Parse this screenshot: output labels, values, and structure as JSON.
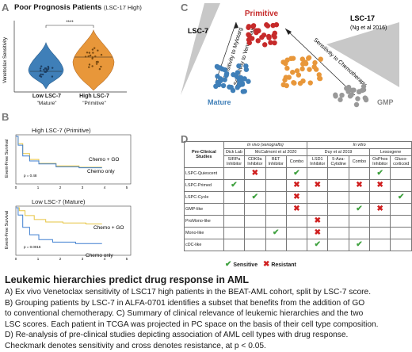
{
  "panelA": {
    "label": "A",
    "title": "Poor Prognosis Patients",
    "title_sub": "(LSC-17 High)",
    "ylabel": "Venetoclax Sensitivity",
    "significance": "****",
    "groups": [
      {
        "name": "Low LSC-7",
        "sub": "\"Mature\"",
        "color": "#3f7fb8"
      },
      {
        "name": "High LSC-7",
        "sub": "\"Primitive\"",
        "color": "#e8973a"
      }
    ]
  },
  "panelB": {
    "label": "B",
    "ylabel": "Event-Free Survival",
    "xticks": [
      "0",
      "1",
      "2",
      "3",
      "4",
      "5"
    ],
    "plots": [
      {
        "title": "High LSC-7 (Primitive)",
        "pval": "p = 0.48",
        "curve_gold": "Chemo + GO",
        "curve_blue": "Chemo only"
      },
      {
        "title": "Low LSC-7 (Mature)",
        "pval": "p = 0.0016",
        "curve_gold": "Chemo + GO",
        "curve_blue": "Chemo only"
      }
    ],
    "colors": {
      "gold": "#e6c440",
      "blue": "#3f7fd0"
    }
  },
  "panelC": {
    "label": "C",
    "primitive": "Primitive",
    "lsc7": "LSC-7",
    "lsc17": "LSC-17",
    "lsc17_ref": "(Ng et al 2016)",
    "myl": "Sensitivity to Mylotarg",
    "ven": "Sensitivity to Venetoclax",
    "chemo": "Sensitivity to Chemotherapy",
    "mature": "Mature",
    "gmp": "GMP",
    "colors": {
      "primitive": "#c62a2a",
      "mature": "#3f7fb8",
      "orange": "#e8973a",
      "gmp": "#999999"
    }
  },
  "panelD": {
    "label": "D",
    "col_studies": "Pre-Clinical Studies",
    "in_vivo": "In vivo (xenografts)",
    "in_vitro": "In vitro",
    "studies": [
      "Dick Lab",
      "McCalmont et al 2020",
      "Duy et al 2019",
      "Lesosgene"
    ],
    "drugs": [
      "SIRPa Inhibitor",
      "CDK9a Inhibitor",
      "BET Inhibitor",
      "Combo",
      "LSD1 Inhibitor",
      "5-Aza-Cytidine",
      "Combo",
      "OxPhos Inhibitor",
      "Gluco-corticoid"
    ],
    "rows": [
      {
        "name": "LSPC-Quiescent",
        "marks": [
          "",
          "x",
          "",
          "v",
          "",
          "",
          "",
          "v",
          ""
        ]
      },
      {
        "name": "LSPC-Primed",
        "marks": [
          "v",
          "",
          "",
          "x",
          "x",
          "",
          "x",
          "x",
          ""
        ]
      },
      {
        "name": "LSPC-Cycle",
        "marks": [
          "",
          "v",
          "",
          "x",
          "",
          "",
          "",
          "",
          "v"
        ]
      },
      {
        "name": "GMP-like",
        "marks": [
          "",
          "",
          "",
          "x",
          "",
          "",
          "v",
          "x",
          ""
        ]
      },
      {
        "name": "ProMono-like",
        "marks": [
          "",
          "",
          "",
          "",
          "x",
          "",
          "",
          "",
          ""
        ]
      },
      {
        "name": "Mono-like",
        "marks": [
          "",
          "",
          "v",
          "",
          "x",
          "",
          "",
          "",
          ""
        ]
      },
      {
        "name": "cDC-like",
        "marks": [
          "",
          "",
          "",
          "",
          "v",
          "",
          "v",
          "",
          ""
        ]
      }
    ],
    "legend_sensitive": "Sensitive",
    "legend_resistant": "Resistant",
    "check_glyph": "✔",
    "cross_glyph": "✖"
  },
  "caption": {
    "title": "Leukemic hierarchies predict drug response in AML",
    "lines": [
      "A) Ex vivo Venetoclax sensitivity of LSC17 high patients in the BEAT-AML cohort, split by LSC-7 score.",
      "B) Grouping patients by LSC-7 in ALFA-0701 identifies a subset that benefits from the addition of GO",
      "to conventional chemotherapy. C) Summary of clinical relevance of leukemic hierarchies and the two",
      "LSC scores. Each patient in TCGA was projected in PC space on the basis of their cell type composition.",
      "D) Re-analysis of pre-clinical studies depicting association of AML cell types with drug response.",
      "Checkmark denotes sensitivity and cross denotes resistance, at p < 0.05."
    ]
  }
}
